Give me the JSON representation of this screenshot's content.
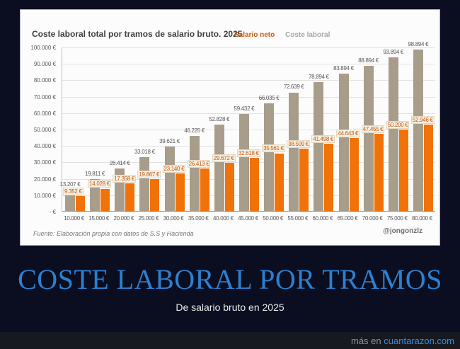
{
  "page": {
    "title": "COSTE LABORAL POR TRAMOS",
    "subtitle": "De salario bruto en 2025",
    "watermark_prefix": "más en",
    "watermark_link": "cuantarazon.com"
  },
  "chart": {
    "title": "Coste laboral total por tramos de salario bruto. 2025",
    "source": "Fuente: Elaboración propia con datos de S.S y Hacienda",
    "credit": "@jongonzlz"
  },
  "chart_data": {
    "type": "bar",
    "title": "Coste laboral total por tramos de salario bruto. 2025",
    "xlabel": "",
    "ylabel": "",
    "ylim": [
      0,
      100000
    ],
    "grid": true,
    "legend_position": "top-right",
    "categories": [
      "10.000 €",
      "15.000 €",
      "20.000 €",
      "25.000 €",
      "30.000 €",
      "35.000 €",
      "40.000 €",
      "45.000 €",
      "50.000 €",
      "55.000 €",
      "60.000 €",
      "65.000 €",
      "70.000 €",
      "75.000 €",
      "80.000 €"
    ],
    "ytick_labels": [
      "-  €",
      "10.000 €",
      "20.000 €",
      "30.000 €",
      "40.000 €",
      "50.000 €",
      "60.000 €",
      "70.000 €",
      "80.000 €",
      "90.000 €",
      "100.000 €"
    ],
    "series": [
      {
        "name": "Salario neto",
        "color": "#f17208",
        "label_color": "#c55a11",
        "values": [
          9352,
          14028,
          17358,
          19867,
          23140,
          26413,
          29672,
          32618,
          35561,
          38509,
          41498,
          44643,
          47455,
          50200,
          52946
        ],
        "labels": [
          "9.352 €",
          "14.028 €",
          "17.358 €",
          "19.867 €",
          "23.140 €",
          "26.413 €",
          "29.672 €",
          "32.618 €",
          "35.561 €",
          "38.509 €",
          "41.498 €",
          "44.643 €",
          "47.455 €",
          "50.200 €",
          "52.946 €"
        ]
      },
      {
        "name": "Coste laboral",
        "color": "#a79d8a",
        "label_color": "#a6a6a6",
        "values": [
          13207,
          19811,
          26414,
          33018,
          39621,
          46225,
          52828,
          59432,
          66035,
          72639,
          78894,
          83894,
          88894,
          93894,
          98894
        ],
        "labels": [
          "13.207 €",
          "19.811 €",
          "26.414 €",
          "33.018 €",
          "39.621 €",
          "46.225 €",
          "52.828 €",
          "59.432 €",
          "66.035 €",
          "72.639 €",
          "78.894 €",
          "83.894 €",
          "88.894 €",
          "93.894 €",
          "98.894 €"
        ]
      }
    ]
  }
}
